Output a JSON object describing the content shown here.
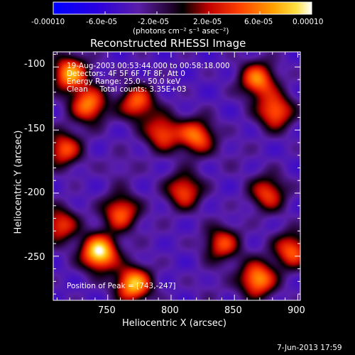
{
  "colorbar": {
    "ticks": [
      "-0.00010",
      "-6.0e-05",
      "-2.0e-05",
      "2.0e-05",
      "6.0e-05",
      "0.00010"
    ],
    "units": "(photons cm⁻² s⁻¹ asec⁻²)"
  },
  "chart_data": {
    "type": "heatmap",
    "title": "Reconstructed RHESSI Image",
    "xlabel": "Heliocentric X (arcsec)",
    "ylabel": "Heliocentric Y (arcsec)",
    "xlim": [
      707,
      902
    ],
    "ylim": [
      -285,
      -88
    ],
    "xticks": [
      750,
      800,
      850,
      900
    ],
    "yticks": [
      -100,
      -150,
      -200,
      -250
    ],
    "zlim": [
      -0.0001,
      0.0001
    ],
    "colormap": "rhessi-blue-purple-red-yellow-white",
    "peak": [
      743,
      -247
    ],
    "info_lines": [
      "19-Aug-2003 00:53:44.000 to 00:58:18.000",
      "Detectors: 4F 5F 6F 7F 8F, Att 0",
      "Energy Range: 25.0 - 50.0 keV",
      "Clean     Total counts: 3.35E+03"
    ],
    "peak_label": "Position of Peak = [743,-247]",
    "blobs_note_values": [
      {
        "x": 743,
        "y": -247,
        "z": 0.0001
      },
      {
        "x": 770,
        "y": -272,
        "z": 8e-05
      },
      {
        "x": 720,
        "y": -105,
        "z": 7e-05
      },
      {
        "x": 735,
        "y": -130,
        "z": 6e-05
      },
      {
        "x": 773,
        "y": -128,
        "z": 5e-05
      },
      {
        "x": 793,
        "y": -152,
        "z": 4.5e-05
      },
      {
        "x": 820,
        "y": -155,
        "z": 5.5e-05
      },
      {
        "x": 868,
        "y": -110,
        "z": 6e-05
      },
      {
        "x": 882,
        "y": -135,
        "z": 5.5e-05
      },
      {
        "x": 876,
        "y": -200,
        "z": 4e-05
      },
      {
        "x": 868,
        "y": -268,
        "z": 7e-05
      },
      {
        "x": 895,
        "y": -245,
        "z": 5e-05
      },
      {
        "x": 840,
        "y": -240,
        "z": 4e-05
      },
      {
        "x": 810,
        "y": -198,
        "z": 4.5e-05
      },
      {
        "x": 760,
        "y": -215,
        "z": 5e-05
      },
      {
        "x": 715,
        "y": -165,
        "z": 4.5e-05
      },
      {
        "x": 712,
        "y": -225,
        "z": 4e-05
      },
      {
        "x": 787,
        "y": -232,
        "z": -3.5e-05
      },
      {
        "x": 850,
        "y": -170,
        "z": -3e-05
      },
      {
        "x": 830,
        "y": -275,
        "z": -3e-05
      },
      {
        "x": 760,
        "y": -180,
        "z": -2.5e-05
      }
    ]
  },
  "footer": {
    "timestamp": "7-Jun-2013 17:59"
  }
}
